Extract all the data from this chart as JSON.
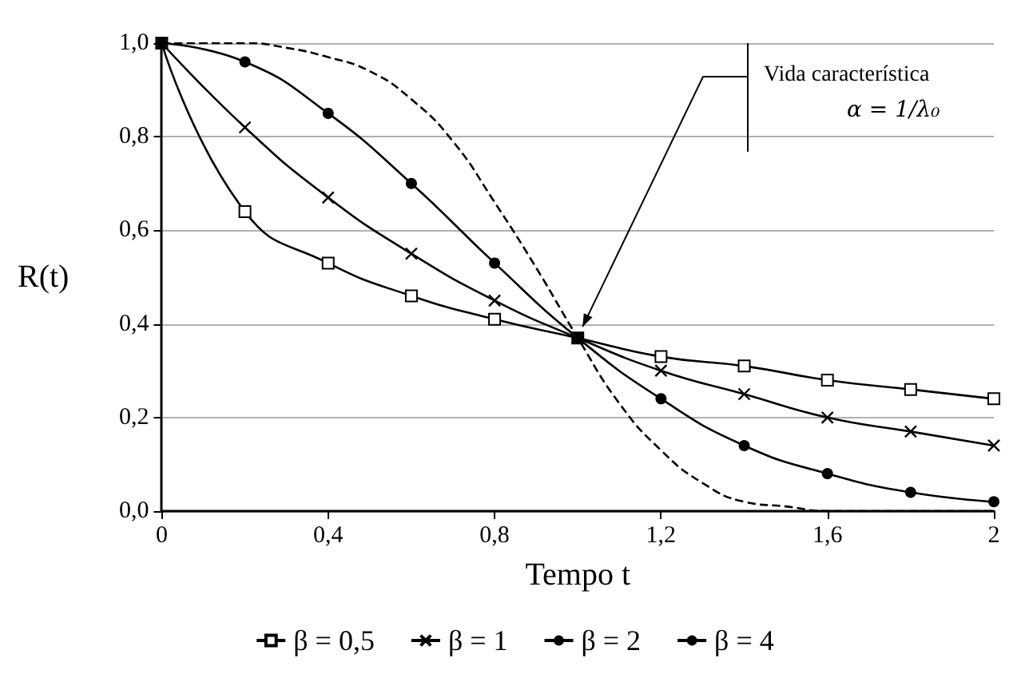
{
  "chart_data": {
    "type": "line",
    "xlabel": "Tempo t",
    "ylabel": "R(t)",
    "xlim": [
      0,
      2
    ],
    "ylim": [
      0,
      1
    ],
    "xticks": [
      0,
      {
        "value": 0.4,
        "label": "0,4"
      },
      {
        "value": 0.8,
        "label": "0,8"
      },
      {
        "value": 1.2,
        "label": "1,2"
      },
      {
        "value": 1.6,
        "label": "1,6"
      },
      2
    ],
    "yticks": [
      {
        "value": 0,
        "label": "0,0"
      },
      {
        "value": 0.2,
        "label": "0,2"
      },
      {
        "value": 0.4,
        "label": "0,4"
      },
      {
        "value": 0.6,
        "label": "0,6"
      },
      {
        "value": 0.8,
        "label": "0,8"
      },
      {
        "value": 1,
        "label": "1,0"
      }
    ],
    "grid": "y",
    "legend": "bottom",
    "series": [
      {
        "name": "β = 0,5",
        "color": "#000000",
        "marker": "square",
        "line_style": "solid",
        "x": [
          0,
          0.2,
          0.4,
          0.6,
          0.8,
          1,
          1.2,
          1.4,
          1.6,
          1.8,
          2
        ],
        "values": [
          1,
          0.64,
          0.53,
          0.46,
          0.41,
          0.37,
          0.33,
          0.31,
          0.28,
          0.26,
          0.24
        ]
      },
      {
        "name": "β = 1",
        "color": "#000000",
        "marker": "cross",
        "line_style": "solid",
        "x": [
          0,
          0.2,
          0.4,
          0.6,
          0.8,
          1,
          1.2,
          1.4,
          1.6,
          1.8,
          2
        ],
        "values": [
          1,
          0.82,
          0.67,
          0.55,
          0.45,
          0.37,
          0.3,
          0.25,
          0.2,
          0.17,
          0.14
        ]
      },
      {
        "name": "β = 2",
        "color": "#000000",
        "marker": "circle",
        "line_style": "solid",
        "x": [
          0,
          0.2,
          0.4,
          0.6,
          0.8,
          1,
          1.2,
          1.4,
          1.6,
          1.8,
          2
        ],
        "values": [
          1,
          0.96,
          0.85,
          0.7,
          0.53,
          0.37,
          0.24,
          0.14,
          0.08,
          0.04,
          0.02
        ]
      },
      {
        "name": "β = 4",
        "color": "#000000",
        "marker": "none",
        "line_style": "dashed",
        "x": [
          0,
          0.1,
          0.2,
          0.3,
          0.4,
          0.5,
          0.6,
          0.7,
          0.8,
          0.9,
          1,
          1.1,
          1.2,
          1.3,
          1.4,
          1.5,
          1.6,
          1.7,
          1.8,
          1.9,
          2
        ],
        "values": [
          1,
          1,
          1,
          0.99,
          0.97,
          0.94,
          0.88,
          0.79,
          0.66,
          0.52,
          0.37,
          0.23,
          0.13,
          0.06,
          0.02,
          0.01,
          0,
          0,
          0,
          0,
          0
        ]
      }
    ],
    "annotations": [
      {
        "text": "Vida característica",
        "x": 1,
        "y": 0.37
      },
      "α = 1/λ₀"
    ]
  }
}
